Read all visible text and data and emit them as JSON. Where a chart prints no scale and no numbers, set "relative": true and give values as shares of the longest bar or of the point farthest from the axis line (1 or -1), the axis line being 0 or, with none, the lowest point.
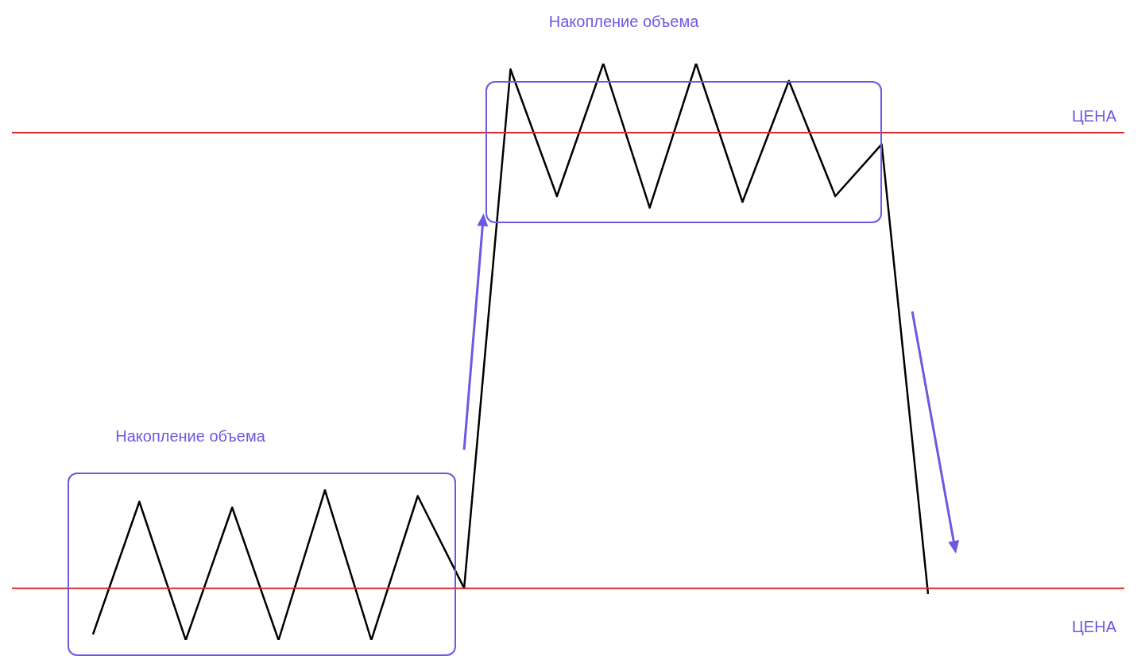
{
  "chart_data": {
    "type": "line",
    "relative": true,
    "categories": [
      null,
      null,
      null,
      null,
      null,
      null,
      null,
      null,
      null,
      null,
      null,
      null,
      null,
      null,
      null,
      null,
      null,
      null,
      null
    ],
    "series": [
      {
        "color": "#000000",
        "values": [
          0.01,
          0.24,
          0,
          0.23,
          0,
          0.26,
          0,
          0.25,
          0.09,
          0.99,
          0.77,
          1,
          0.75,
          1,
          0.76,
          0.97,
          0.77,
          0.86,
          0.08
        ]
      }
    ],
    "ref_lines": [
      {
        "axis": "y",
        "value": 0.88,
        "label": "ЦЕНА",
        "color": "#e02828"
      },
      {
        "axis": "y",
        "value": 0.09,
        "label": "ЦЕНА",
        "color": "#e02828"
      }
    ],
    "annotations": [
      "Накопление объема",
      "Накопление объема"
    ],
    "legend": false,
    "marker": "none",
    "line_style": "solid"
  }
}
